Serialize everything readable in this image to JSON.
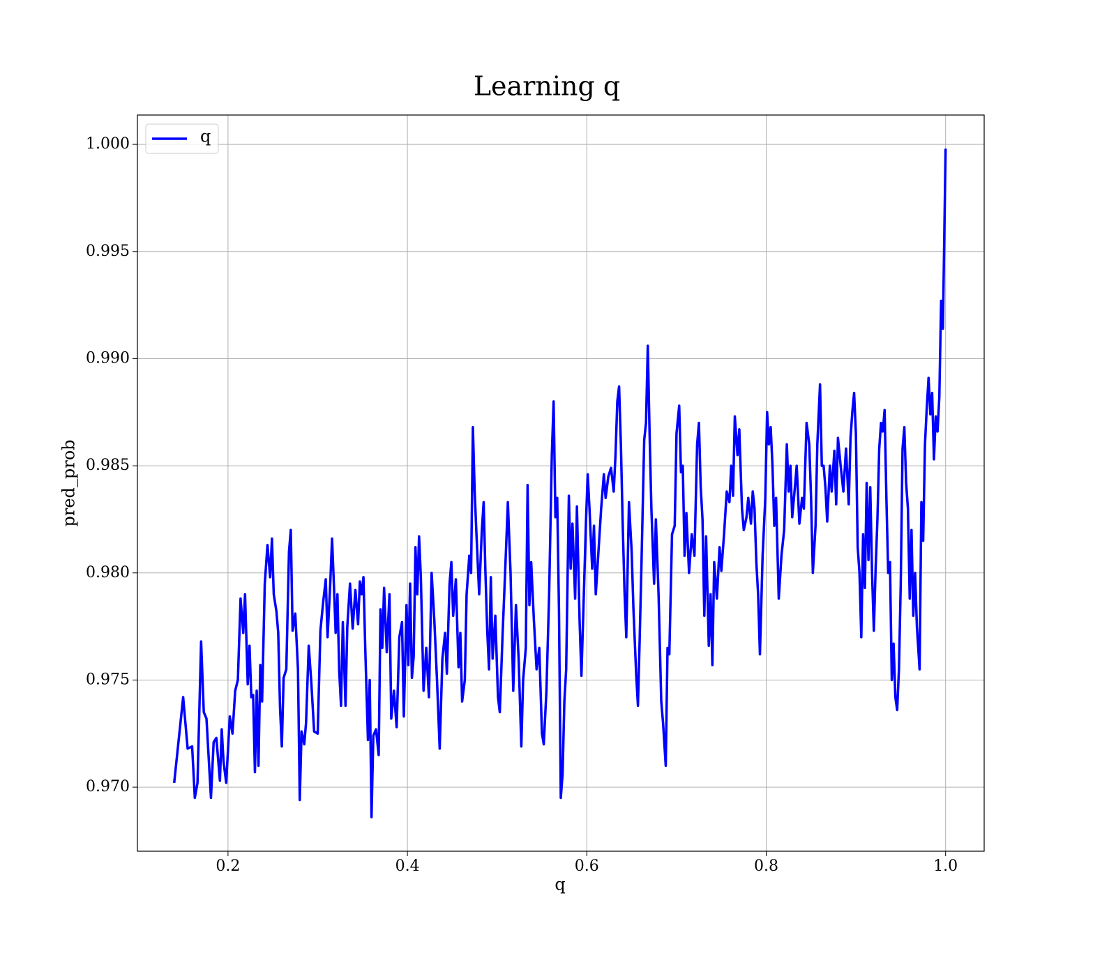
{
  "chart_data": {
    "type": "line",
    "title": "Learning q",
    "xlabel": "q",
    "ylabel": "pred_prob",
    "xlim": [
      0.099,
      1.043
    ],
    "ylim": [
      0.96701,
      1.00137
    ],
    "xticks": [
      0.2,
      0.4,
      0.6,
      0.8,
      {
        "value": 1,
        "label": "1.0"
      }
    ],
    "yticks": [
      {
        "value": 0.97,
        "label": "0.970"
      },
      {
        "value": 0.975,
        "label": "0.975"
      },
      {
        "value": 0.98,
        "label": "0.980"
      },
      {
        "value": 0.985,
        "label": "0.985"
      },
      {
        "value": 0.99,
        "label": "0.990"
      },
      {
        "value": 0.995,
        "label": "0.995"
      },
      {
        "value": 1,
        "label": "1.000"
      }
    ],
    "grid": true,
    "legend": "upper left",
    "x": [
      0.14,
      0.15,
      0.155,
      0.16,
      0.163,
      0.166,
      0.17,
      0.173,
      0.176,
      0.181,
      0.184,
      0.187,
      0.191,
      0.193,
      0.195,
      0.198,
      0.202,
      0.205,
      0.208,
      0.211,
      0.214,
      0.217,
      0.219,
      0.222,
      0.224,
      0.226,
      0.228,
      0.23,
      0.232,
      0.234,
      0.236,
      0.238,
      0.241,
      0.244,
      0.247,
      0.249,
      0.251,
      0.254,
      0.256,
      0.258,
      0.26,
      0.262,
      0.265,
      0.268,
      0.27,
      0.272,
      0.275,
      0.278,
      0.28,
      0.282,
      0.285,
      0.287,
      0.29,
      0.293,
      0.296,
      0.3,
      0.303,
      0.306,
      0.309,
      0.311,
      0.314,
      0.316,
      0.318,
      0.32,
      0.322,
      0.324,
      0.326,
      0.328,
      0.331,
      0.333,
      0.336,
      0.339,
      0.342,
      0.345,
      0.347,
      0.349,
      0.351,
      0.353,
      0.356,
      0.358,
      0.36,
      0.362,
      0.365,
      0.368,
      0.37,
      0.372,
      0.374,
      0.377,
      0.38,
      0.382,
      0.385,
      0.388,
      0.391,
      0.394,
      0.396,
      0.399,
      0.401,
      0.403,
      0.405,
      0.407,
      0.409,
      0.411,
      0.413,
      0.415,
      0.418,
      0.421,
      0.424,
      0.427,
      0.43,
      0.433,
      0.436,
      0.439,
      0.442,
      0.444,
      0.447,
      0.449,
      0.451,
      0.454,
      0.457,
      0.459,
      0.461,
      0.464,
      0.466,
      0.469,
      0.471,
      0.473,
      0.475,
      0.477,
      0.48,
      0.483,
      0.485,
      0.487,
      0.489,
      0.491,
      0.493,
      0.495,
      0.498,
      0.501,
      0.503,
      0.506,
      0.509,
      0.512,
      0.515,
      0.518,
      0.521,
      0.524,
      0.527,
      0.529,
      0.532,
      0.534,
      0.536,
      0.538,
      0.541,
      0.544,
      0.547,
      0.55,
      0.552,
      0.555,
      0.558,
      0.561,
      0.563,
      0.565,
      0.567,
      0.569,
      0.571,
      0.573,
      0.575,
      0.577,
      0.58,
      0.582,
      0.584,
      0.587,
      0.589,
      0.592,
      0.594,
      0.596,
      0.599,
      0.601,
      0.603,
      0.606,
      0.608,
      0.61,
      0.613,
      0.616,
      0.619,
      0.621,
      0.624,
      0.627,
      0.63,
      0.632,
      0.634,
      0.636,
      0.638,
      0.64,
      0.642,
      0.644,
      0.647,
      0.65,
      0.652,
      0.655,
      0.657,
      0.659,
      0.661,
      0.664,
      0.666,
      0.668,
      0.67,
      0.672,
      0.675,
      0.677,
      0.68,
      0.683,
      0.685,
      0.688,
      0.69,
      0.692,
      0.695,
      0.698,
      0.7,
      0.703,
      0.705,
      0.707,
      0.709,
      0.711,
      0.714,
      0.717,
      0.72,
      0.723,
      0.725,
      0.727,
      0.729,
      0.731,
      0.733,
      0.736,
      0.738,
      0.74,
      0.742,
      0.745,
      0.748,
      0.75,
      0.753,
      0.756,
      0.759,
      0.761,
      0.763,
      0.765,
      0.768,
      0.77,
      0.773,
      0.775,
      0.778,
      0.78,
      0.783,
      0.785,
      0.787,
      0.789,
      0.791,
      0.793,
      0.796,
      0.799,
      0.801,
      0.803,
      0.805,
      0.807,
      0.809,
      0.811,
      0.814,
      0.817,
      0.82,
      0.823,
      0.825,
      0.827,
      0.829,
      0.832,
      0.834,
      0.837,
      0.84,
      0.842,
      0.845,
      0.848,
      0.85,
      0.852,
      0.855,
      0.857,
      0.86,
      0.862,
      0.864,
      0.866,
      0.868,
      0.871,
      0.873,
      0.876,
      0.878,
      0.88,
      0.883,
      0.886,
      0.889,
      0.892,
      0.894,
      0.896,
      0.898,
      0.9,
      0.902,
      0.904,
      0.906,
      0.908,
      0.91,
      0.912,
      0.914,
      0.916,
      0.918,
      0.92,
      0.922,
      0.924,
      0.926,
      0.928,
      0.93,
      0.932,
      0.934,
      0.936,
      0.938,
      0.94,
      0.942,
      0.944,
      0.946,
      0.948,
      0.95,
      0.952,
      0.954,
      0.956,
      0.958,
      0.96,
      0.962,
      0.964,
      0.966,
      0.968,
      0.971,
      0.973,
      0.975,
      0.977,
      0.979,
      0.981,
      0.983,
      0.985,
      0.987,
      0.989,
      0.991,
      0.993,
      0.995,
      0.997,
      1.0
    ],
    "series": [
      {
        "name": "q",
        "color": "#0000ff",
        "values": [
          0.9702,
          0.9742,
          0.9718,
          0.9719,
          0.9695,
          0.9702,
          0.9768,
          0.9735,
          0.9732,
          0.9695,
          0.9721,
          0.9723,
          0.9703,
          0.9727,
          0.9712,
          0.9702,
          0.9733,
          0.9725,
          0.9745,
          0.975,
          0.9788,
          0.9772,
          0.979,
          0.9748,
          0.9766,
          0.9742,
          0.9743,
          0.9707,
          0.9745,
          0.971,
          0.9757,
          0.974,
          0.9795,
          0.9813,
          0.9798,
          0.9816,
          0.979,
          0.9782,
          0.9772,
          0.9737,
          0.9719,
          0.9751,
          0.9755,
          0.981,
          0.982,
          0.9773,
          0.9781,
          0.9755,
          0.9694,
          0.9726,
          0.972,
          0.973,
          0.9766,
          0.9748,
          0.9726,
          0.9725,
          0.9773,
          0.9786,
          0.9797,
          0.977,
          0.9795,
          0.9816,
          0.9795,
          0.9772,
          0.979,
          0.9754,
          0.9738,
          0.9777,
          0.9738,
          0.9775,
          0.9795,
          0.9774,
          0.9792,
          0.9776,
          0.9796,
          0.979,
          0.9798,
          0.9765,
          0.9722,
          0.975,
          0.9686,
          0.9724,
          0.9727,
          0.9715,
          0.9783,
          0.9765,
          0.9793,
          0.9763,
          0.979,
          0.9732,
          0.9745,
          0.9728,
          0.977,
          0.9777,
          0.9733,
          0.9785,
          0.9757,
          0.9795,
          0.9751,
          0.9761,
          0.9812,
          0.979,
          0.9817,
          0.9798,
          0.9745,
          0.9765,
          0.9742,
          0.98,
          0.9778,
          0.975,
          0.9718,
          0.976,
          0.9772,
          0.9753,
          0.9795,
          0.9805,
          0.978,
          0.9797,
          0.9756,
          0.9772,
          0.974,
          0.975,
          0.979,
          0.9808,
          0.98,
          0.9868,
          0.9838,
          0.9818,
          0.979,
          0.982,
          0.9833,
          0.98,
          0.9773,
          0.9755,
          0.9798,
          0.976,
          0.978,
          0.9742,
          0.9735,
          0.977,
          0.9801,
          0.9833,
          0.98,
          0.9745,
          0.9785,
          0.976,
          0.9719,
          0.975,
          0.9765,
          0.9841,
          0.9785,
          0.9805,
          0.9778,
          0.9755,
          0.9765,
          0.9725,
          0.972,
          0.9745,
          0.979,
          0.9855,
          0.988,
          0.9826,
          0.9835,
          0.9782,
          0.9695,
          0.9706,
          0.974,
          0.9755,
          0.9836,
          0.9802,
          0.9823,
          0.9788,
          0.9831,
          0.9777,
          0.9752,
          0.978,
          0.9823,
          0.9846,
          0.983,
          0.9802,
          0.9822,
          0.979,
          0.981,
          0.983,
          0.9846,
          0.9835,
          0.9845,
          0.9849,
          0.9838,
          0.9855,
          0.988,
          0.9887,
          0.986,
          0.9823,
          0.9792,
          0.977,
          0.9833,
          0.981,
          0.9783,
          0.9753,
          0.9738,
          0.977,
          0.9805,
          0.9862,
          0.987,
          0.9906,
          0.9865,
          0.983,
          0.9795,
          0.9825,
          0.979,
          0.974,
          0.973,
          0.971,
          0.9765,
          0.9762,
          0.9818,
          0.9822,
          0.9865,
          0.9878,
          0.9847,
          0.985,
          0.9808,
          0.9828,
          0.98,
          0.9818,
          0.9808,
          0.986,
          0.987,
          0.984,
          0.9825,
          0.978,
          0.9817,
          0.9766,
          0.979,
          0.9757,
          0.9805,
          0.9788,
          0.9812,
          0.9801,
          0.9818,
          0.9838,
          0.9833,
          0.985,
          0.9836,
          0.9873,
          0.9855,
          0.9867,
          0.983,
          0.982,
          0.9826,
          0.9835,
          0.9823,
          0.9838,
          0.983,
          0.9805,
          0.979,
          0.9762,
          0.9808,
          0.9835,
          0.9875,
          0.986,
          0.9868,
          0.985,
          0.9822,
          0.9835,
          0.9788,
          0.9808,
          0.982,
          0.986,
          0.9838,
          0.985,
          0.9826,
          0.984,
          0.985,
          0.9823,
          0.9835,
          0.983,
          0.987,
          0.986,
          0.9835,
          0.98,
          0.9822,
          0.986,
          0.9888,
          0.985,
          0.985,
          0.984,
          0.9824,
          0.985,
          0.9838,
          0.9857,
          0.9832,
          0.9863,
          0.985,
          0.9838,
          0.9858,
          0.9832,
          0.9863,
          0.9875,
          0.9884,
          0.9865,
          0.9812,
          0.98,
          0.977,
          0.9818,
          0.9793,
          0.9842,
          0.9806,
          0.984,
          0.98,
          0.9773,
          0.9802,
          0.9825,
          0.9858,
          0.987,
          0.9866,
          0.9876,
          0.9835,
          0.98,
          0.9805,
          0.975,
          0.9767,
          0.9742,
          0.9736,
          0.9755,
          0.9795,
          0.9858,
          0.9868,
          0.9842,
          0.983,
          0.9788,
          0.982,
          0.978,
          0.98,
          0.9775,
          0.9755,
          0.9833,
          0.9815,
          0.986,
          0.9877,
          0.9891,
          0.9874,
          0.9884,
          0.9853,
          0.9873,
          0.9866,
          0.9882,
          0.9927,
          0.9914,
          0.9998
        ]
      }
    ]
  }
}
